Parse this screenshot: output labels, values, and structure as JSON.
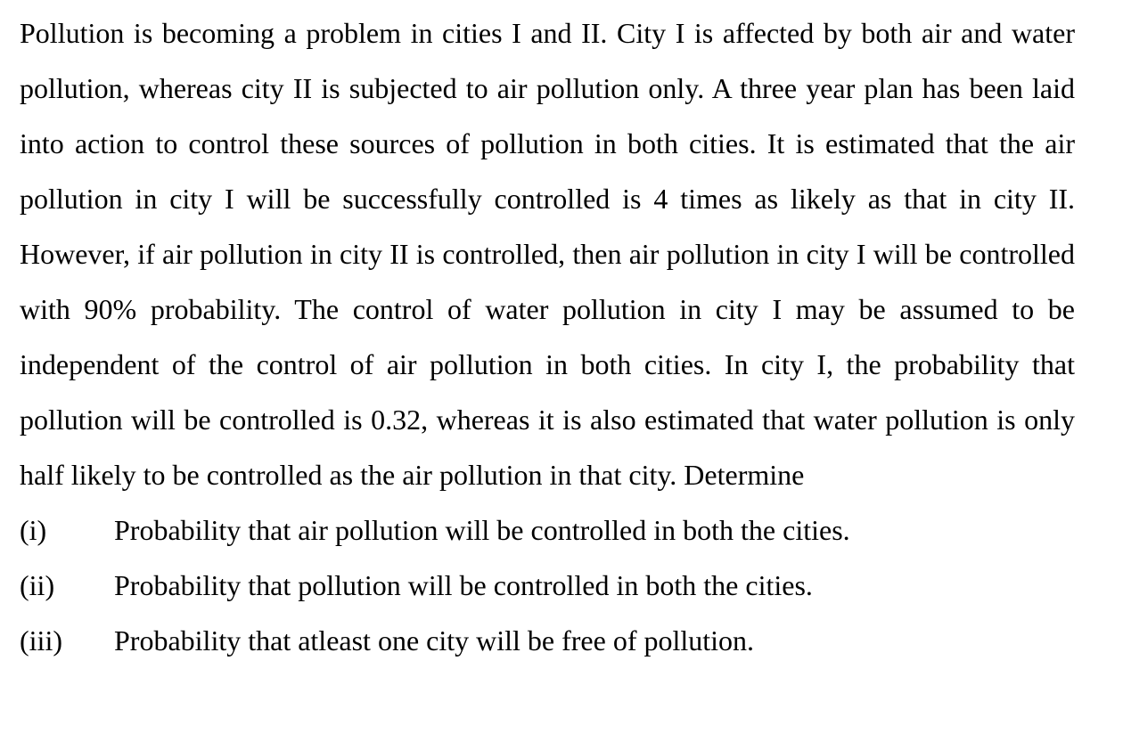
{
  "document": {
    "paragraph": "Pollution is becoming a problem in cities I and II. City I is affected by both air and water pollution, whereas city II is subjected to air pollution only. A three year plan has been laid into action to control these sources of pollution in both cities. It is estimated that the air pollution in city I will be successfully controlled is 4 times as likely as that in city II. However, if air pollution in city II is controlled, then air pollution in city I will be controlled with 90% probability. The control of water pollution in city I may be assumed to be independent of the control of air pollution in both cities. In city I, the probability that pollution will be controlled is 0.32, whereas it is also estimated that water pollution is only half likely to be controlled as the air pollution in that city. Determine",
    "items": [
      {
        "number": "(i)",
        "text": "Probability that air pollution will be controlled in both the cities."
      },
      {
        "number": "(ii)",
        "text": "Probability that pollution will be controlled in both the cities."
      },
      {
        "number": "(iii)",
        "text": "Probability that atleast one city will be free of pollution."
      }
    ]
  }
}
